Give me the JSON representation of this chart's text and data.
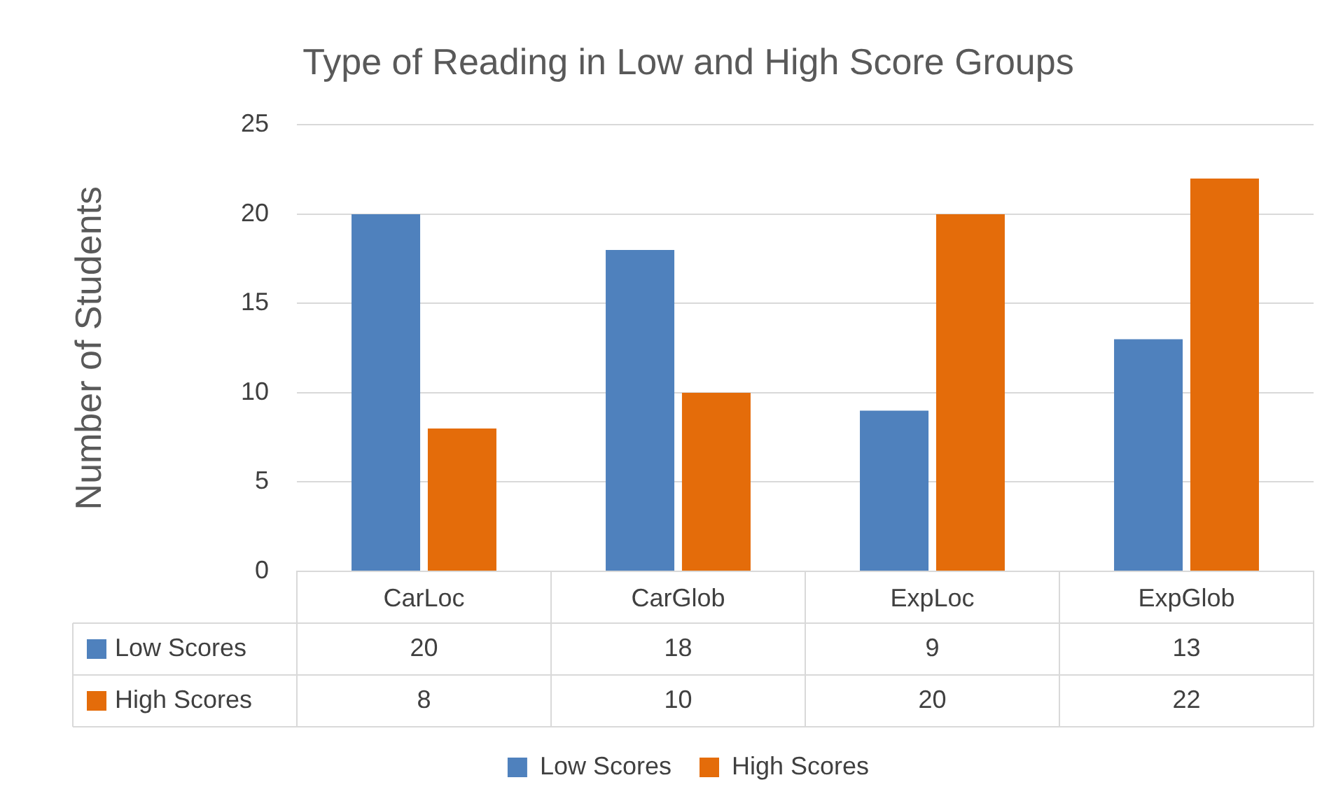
{
  "chart_data": {
    "type": "bar",
    "title": "Type of Reading in Low and High Score Groups",
    "ylabel": "Number of Students",
    "categories": [
      "CarLoc",
      "CarGlob",
      "ExpLoc",
      "ExpGlob"
    ],
    "series": [
      {
        "name": "Low Scores",
        "color": "#4f81bd",
        "values": [
          20,
          18,
          9,
          13
        ]
      },
      {
        "name": "High Scores",
        "color": "#e46c0a",
        "values": [
          8,
          10,
          20,
          22
        ]
      }
    ],
    "ylim": [
      0,
      25
    ],
    "yticks": [
      0,
      5,
      10,
      15,
      20,
      25
    ],
    "grid": "y",
    "legend": "bottom",
    "data_labels": true
  }
}
